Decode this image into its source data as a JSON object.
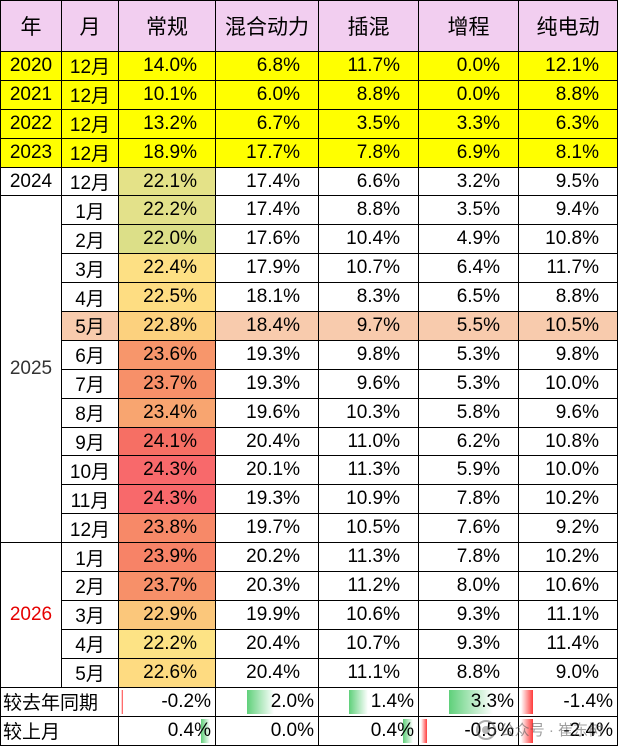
{
  "headers": [
    "年",
    "月",
    "常规",
    "混合动力",
    "插混",
    "增程",
    "纯电动"
  ],
  "rows": [
    {
      "year": "2020",
      "month": "12月",
      "vals": [
        "14.0%",
        "6.8%",
        "11.7%",
        "0.0%",
        "12.1%"
      ],
      "style": "yellow"
    },
    {
      "year": "2021",
      "month": "12月",
      "vals": [
        "10.1%",
        "6.0%",
        "8.8%",
        "0.0%",
        "8.8%"
      ],
      "style": "yellow"
    },
    {
      "year": "2022",
      "month": "12月",
      "vals": [
        "13.2%",
        "6.7%",
        "3.5%",
        "3.3%",
        "6.3%"
      ],
      "style": "yellow"
    },
    {
      "year": "2023",
      "month": "12月",
      "vals": [
        "18.9%",
        "17.7%",
        "7.8%",
        "6.9%",
        "8.1%"
      ],
      "style": "yellow",
      "year_white": true
    },
    {
      "year": "2024",
      "month": "12月",
      "vals": [
        "22.1%",
        "17.4%",
        "6.6%",
        "3.2%",
        "9.5%"
      ],
      "style": "plain",
      "conv_color": "#e4e288"
    },
    {
      "month": "1月",
      "vals": [
        "22.2%",
        "17.4%",
        "8.8%",
        "3.5%",
        "9.4%"
      ],
      "style": "plain",
      "conv_color": "#e3e18a"
    },
    {
      "month": "2月",
      "vals": [
        "22.0%",
        "17.6%",
        "10.4%",
        "4.9%",
        "10.8%"
      ],
      "style": "plain",
      "conv_color": "#dcdf88"
    },
    {
      "month": "3月",
      "vals": [
        "22.4%",
        "17.9%",
        "10.7%",
        "6.4%",
        "11.7%"
      ],
      "style": "plain",
      "conv_color": "#fde084"
    },
    {
      "month": "4月",
      "vals": [
        "22.5%",
        "18.1%",
        "8.3%",
        "6.5%",
        "8.8%"
      ],
      "style": "plain",
      "conv_color": "#fedd82"
    },
    {
      "month": "5月",
      "vals": [
        "22.8%",
        "18.4%",
        "9.7%",
        "5.5%",
        "10.5%"
      ],
      "style": "highlight",
      "conv_color": "#fcd17e"
    },
    {
      "month": "6月",
      "vals": [
        "23.6%",
        "19.3%",
        "9.8%",
        "5.3%",
        "9.8%"
      ],
      "style": "plain",
      "conv_color": "#f7966b"
    },
    {
      "month": "7月",
      "vals": [
        "23.7%",
        "19.3%",
        "9.6%",
        "5.3%",
        "10.0%"
      ],
      "style": "plain",
      "conv_color": "#f79069"
    },
    {
      "month": "8月",
      "vals": [
        "23.4%",
        "19.6%",
        "10.3%",
        "5.8%",
        "9.6%"
      ],
      "style": "plain",
      "conv_color": "#f8a570"
    },
    {
      "month": "9月",
      "vals": [
        "24.1%",
        "20.4%",
        "11.0%",
        "6.2%",
        "10.8%"
      ],
      "style": "plain",
      "conv_color": "#f66f64"
    },
    {
      "month": "10月",
      "vals": [
        "24.3%",
        "20.1%",
        "11.3%",
        "5.9%",
        "10.0%"
      ],
      "style": "plain",
      "conv_color": "#f8696b"
    },
    {
      "month": "11月",
      "vals": [
        "24.3%",
        "19.3%",
        "10.9%",
        "7.8%",
        "10.2%"
      ],
      "style": "plain",
      "conv_color": "#f8696b"
    },
    {
      "month": "12月",
      "vals": [
        "23.8%",
        "19.7%",
        "10.5%",
        "7.6%",
        "9.2%"
      ],
      "style": "plain",
      "conv_color": "#f78968"
    },
    {
      "month": "1月",
      "vals": [
        "23.9%",
        "20.2%",
        "11.3%",
        "7.8%",
        "10.2%"
      ],
      "style": "plain",
      "conv_color": "#f78367"
    },
    {
      "month": "2月",
      "vals": [
        "23.7%",
        "20.3%",
        "11.2%",
        "8.0%",
        "10.6%"
      ],
      "style": "plain",
      "conv_color": "#f79069"
    },
    {
      "month": "3月",
      "vals": [
        "22.9%",
        "19.9%",
        "10.6%",
        "9.3%",
        "11.1%"
      ],
      "style": "plain",
      "conv_color": "#fbc77b"
    },
    {
      "month": "4月",
      "vals": [
        "22.2%",
        "20.4%",
        "10.7%",
        "9.3%",
        "11.4%"
      ],
      "style": "plain",
      "conv_color": "#fde385"
    },
    {
      "month": "5月",
      "vals": [
        "22.6%",
        "20.4%",
        "11.1%",
        "8.8%",
        "9.0%"
      ],
      "style": "plain",
      "conv_color": "#fedb81"
    }
  ],
  "merged_years": [
    {
      "label": "2025",
      "start_row": 5,
      "span": 12,
      "color": "#333333"
    },
    {
      "label": "2026",
      "start_row": 17,
      "span": 5,
      "color": "#e60000"
    }
  ],
  "footer": [
    {
      "label": "较去年同期",
      "cells": [
        {
          "text": "-0.2%",
          "value": -0.2
        },
        {
          "text": "2.0%",
          "value": 2.0
        },
        {
          "text": "1.4%",
          "value": 1.4
        },
        {
          "text": "3.3%",
          "value": 3.3
        },
        {
          "text": "-1.4%",
          "value": -1.4
        }
      ]
    },
    {
      "label": "较上月",
      "cells": [
        {
          "text": "0.4%",
          "value": 0.4
        },
        {
          "text": "0.0%",
          "value": 0.0
        },
        {
          "text": "0.4%",
          "value": 0.4
        },
        {
          "text": "-0.5%",
          "value": -0.5
        },
        {
          "text": "-2.4%",
          "value": -2.4
        }
      ]
    }
  ],
  "footer_bar_max": 3.3,
  "colors": {
    "header_bg": "#f2cef0",
    "yellow": "#ffff00",
    "highlight": "#f8cbad"
  },
  "watermark": {
    "text": "公众号 · 崔东树",
    "icon": "wechat-logo-icon"
  }
}
